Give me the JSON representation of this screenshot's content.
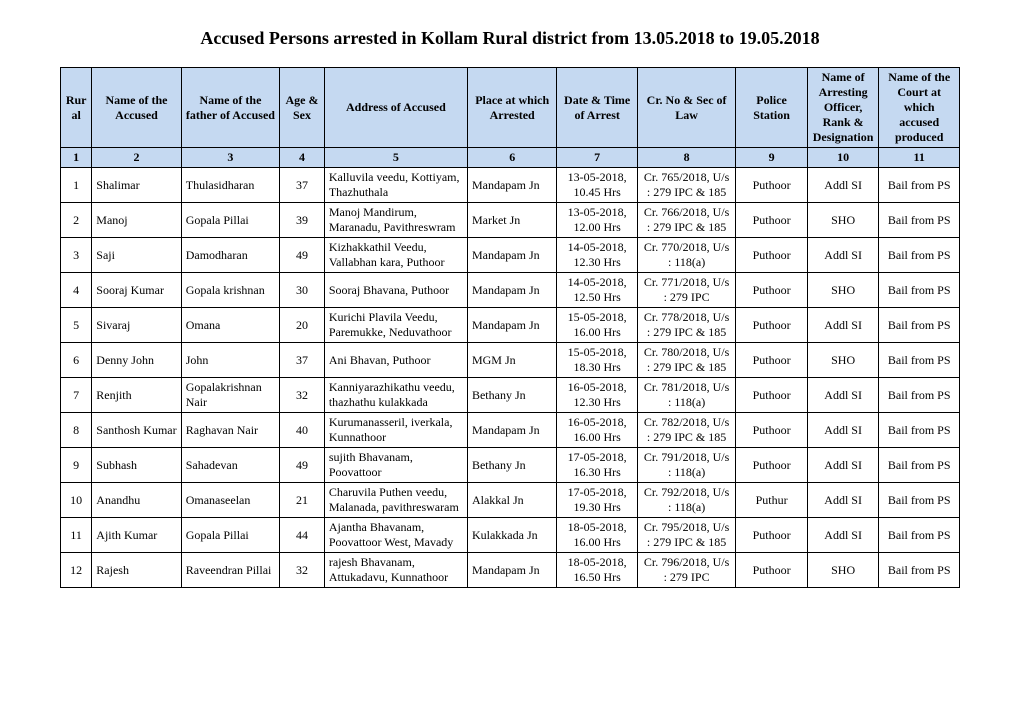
{
  "title": "Accused Persons arrested in Kollam  Rural  district from  13.05.2018 to 19.05.2018",
  "headers": {
    "c1": "Rural",
    "c2": "Name of the Accused",
    "c3": "Name of the father of Accused",
    "c4": "Age & Sex",
    "c5": "Address of Accused",
    "c6": "Place at which Arrested",
    "c7": "Date & Time of Arrest",
    "c8": "Cr. No & Sec of Law",
    "c9": "Police Station",
    "c10": "Name of Arresting Officer, Rank & Designation",
    "c11": "Name of the Court at which accused produced"
  },
  "colnums": [
    "1",
    "2",
    "3",
    "4",
    "5",
    "6",
    "7",
    "8",
    "9",
    "10",
    "11"
  ],
  "rows": [
    {
      "n": "1",
      "name": "Shalimar",
      "father": "Thulasidharan",
      "age": "37",
      "addr": "Kalluvila veedu, Kottiyam, Thazhuthala",
      "place": "Mandapam Jn",
      "dt": "13-05-2018, 10.45 Hrs",
      "cr": "Cr. 765/2018, U/s : 279 IPC & 185",
      "ps": "Puthoor",
      "off": "Addl SI",
      "court": "Bail from PS"
    },
    {
      "n": "2",
      "name": "Manoj",
      "father": "Gopala Pillai",
      "age": "39",
      "addr": "Manoj Mandirum, Maranadu, Pavithreswram",
      "place": "Market Jn",
      "dt": "13-05-2018, 12.00 Hrs",
      "cr": "Cr. 766/2018, U/s : 279 IPC & 185",
      "ps": "Puthoor",
      "off": "SHO",
      "court": "Bail from PS"
    },
    {
      "n": "3",
      "name": "Saji",
      "father": "Damodharan",
      "age": "49",
      "addr": "Kizhakkathil Veedu, Vallabhan kara, Puthoor",
      "place": "Mandapam Jn",
      "dt": "14-05-2018, 12.30 Hrs",
      "cr": "Cr. 770/2018, U/s : 118(a)",
      "ps": "Puthoor",
      "off": "Addl SI",
      "court": "Bail from PS"
    },
    {
      "n": "4",
      "name": "Sooraj Kumar",
      "father": "Gopala krishnan",
      "age": "30",
      "addr": "Sooraj Bhavana, Puthoor",
      "place": "Mandapam Jn",
      "dt": "14-05-2018, 12.50 Hrs",
      "cr": "Cr. 771/2018, U/s : 279 IPC",
      "ps": "Puthoor",
      "off": "SHO",
      "court": "Bail from PS"
    },
    {
      "n": "5",
      "name": "Sivaraj",
      "father": "Omana",
      "age": "20",
      "addr": "Kurichi Plavila Veedu, Paremukke, Neduvathoor",
      "place": "Mandapam Jn",
      "dt": "15-05-2018, 16.00 Hrs",
      "cr": "Cr. 778/2018, U/s : 279 IPC & 185",
      "ps": "Puthoor",
      "off": "Addl SI",
      "court": "Bail from PS"
    },
    {
      "n": "6",
      "name": "Denny John",
      "father": "John",
      "age": "37",
      "addr": "Ani Bhavan, Puthoor",
      "place": "MGM Jn",
      "dt": "15-05-2018, 18.30 Hrs",
      "cr": "Cr. 780/2018, U/s : 279 IPC & 185",
      "ps": "Puthoor",
      "off": "SHO",
      "court": "Bail from PS"
    },
    {
      "n": "7",
      "name": "Renjith",
      "father": "Gopalakrishnan Nair",
      "age": "32",
      "addr": "Kanniyarazhikathu veedu, thazhathu kulakkada",
      "place": "Bethany Jn",
      "dt": "16-05-2018, 12.30 Hrs",
      "cr": "Cr. 781/2018, U/s : 118(a)",
      "ps": "Puthoor",
      "off": "Addl SI",
      "court": "Bail from PS"
    },
    {
      "n": "8",
      "name": "Santhosh Kumar",
      "father": "Raghavan Nair",
      "age": "40",
      "addr": "Kurumanasseril, iverkala, Kunnathoor",
      "place": "Mandapam Jn",
      "dt": "16-05-2018, 16.00 Hrs",
      "cr": "Cr. 782/2018, U/s : 279 IPC & 185",
      "ps": "Puthoor",
      "off": "Addl SI",
      "court": "Bail from PS"
    },
    {
      "n": "9",
      "name": "Subhash",
      "father": "Sahadevan",
      "age": "49",
      "addr": "sujith Bhavanam, Poovattoor",
      "place": "Bethany Jn",
      "dt": "17-05-2018, 16.30 Hrs",
      "cr": "Cr. 791/2018, U/s : 118(a)",
      "ps": "Puthoor",
      "off": "Addl SI",
      "court": "Bail from PS"
    },
    {
      "n": "10",
      "name": "Anandhu",
      "father": "Omanaseelan",
      "age": "21",
      "addr": "Charuvila Puthen veedu, Malanada, pavithreswaram",
      "place": "Alakkal Jn",
      "dt": "17-05-2018, 19.30 Hrs",
      "cr": "Cr. 792/2018, U/s : 118(a)",
      "ps": "Puthur",
      "off": "Addl SI",
      "court": "Bail from PS"
    },
    {
      "n": "11",
      "name": "Ajith Kumar",
      "father": "Gopala Pillai",
      "age": "44",
      "addr": "Ajantha Bhavanam, Poovattoor West, Mavady",
      "place": "Kulakkada Jn",
      "dt": "18-05-2018, 16.00 Hrs",
      "cr": "Cr. 795/2018, U/s : 279 IPC & 185",
      "ps": "Puthoor",
      "off": "Addl SI",
      "court": "Bail from PS"
    },
    {
      "n": "12",
      "name": "Rajesh",
      "father": "Raveendran Pillai",
      "age": "32",
      "addr": "rajesh Bhavanam, Attukadavu, Kunnathoor",
      "place": "Mandapam Jn",
      "dt": "18-05-2018, 16.50 Hrs",
      "cr": "Cr. 796/2018, U/s : 279 IPC",
      "ps": "Puthoor",
      "off": "SHO",
      "court": "Bail from PS"
    }
  ]
}
